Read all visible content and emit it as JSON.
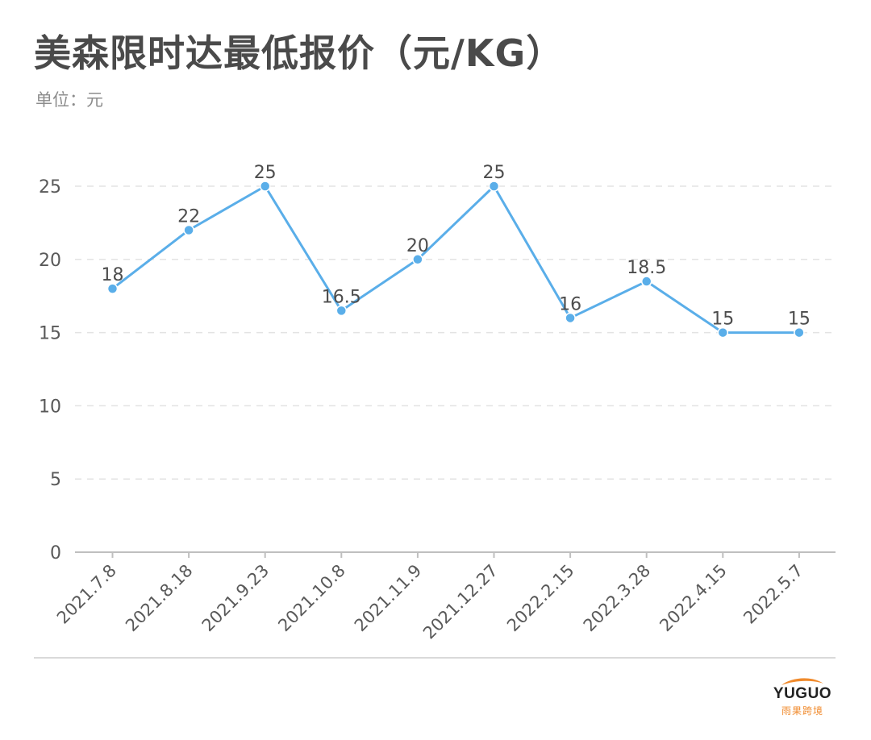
{
  "header": {
    "title": "美森限时达最低报价（元/KG）",
    "unit_label": "单位：元"
  },
  "logo": {
    "name": "YUGUO",
    "subtitle": "雨果跨境",
    "accent_color": "#f08a2c"
  },
  "colors": {
    "line": "#5aaee9",
    "marker": "#5aaee9",
    "grid": "#e3e3e3",
    "axis": "#bfbfbf",
    "label_text": "#4d4d4d",
    "tick_text": "#595959"
  },
  "chart_data": {
    "type": "line",
    "title": "美森限时达最低报价（元/KG）",
    "subtitle": "单位：元",
    "xlabel": "",
    "ylabel": "元",
    "categories": [
      "2021.7.8",
      "2021.8.18",
      "2021.9.23",
      "2021.10.8",
      "2021.11.9",
      "2021.12.27",
      "2022.2.15",
      "2022.3.28",
      "2022.4.15",
      "2022.5.7"
    ],
    "series": [
      {
        "name": "美森限时达最低报价",
        "values": [
          18,
          22,
          25,
          16.5,
          20,
          25,
          16,
          18.5,
          15,
          15
        ]
      }
    ],
    "data_labels": [
      "18",
      "22",
      "25",
      "16.5",
      "20",
      "25",
      "16",
      "18.5",
      "15",
      "15"
    ],
    "yticks": [
      0,
      5,
      10,
      15,
      20,
      25
    ],
    "ylim": [
      0,
      25
    ],
    "grid": "horizontal dashed",
    "legend": "none",
    "x_tick_rotation": -45
  }
}
